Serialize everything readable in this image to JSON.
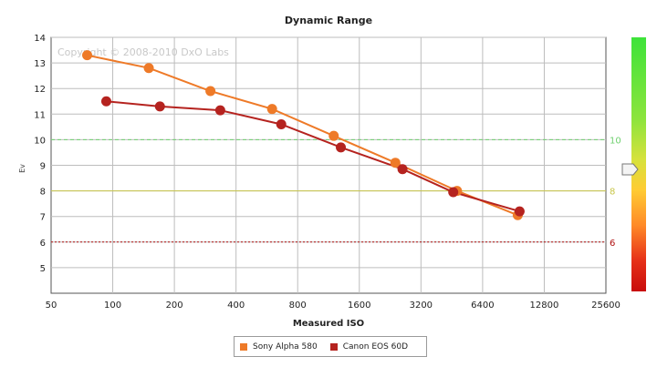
{
  "chart_data": {
    "type": "line",
    "title": "Dynamic Range",
    "xlabel": "Measured ISO",
    "ylabel": "Ev",
    "watermark": "Copyright © 2008-2010 DxO Labs",
    "x_scale": "log2",
    "xlim": [
      50,
      25600
    ],
    "ylim": [
      4,
      14
    ],
    "x_ticks": [
      "50",
      "100",
      "200",
      "400",
      "800",
      "1600",
      "3200",
      "6400",
      "12800",
      "25600"
    ],
    "y_ticks": [
      "5",
      "6",
      "7",
      "8",
      "9",
      "10",
      "11",
      "12",
      "13",
      "14"
    ],
    "grid": true,
    "legend_position": "bottom",
    "reference_lines": [
      {
        "label": "10",
        "y": 10,
        "color": "#6fd06f",
        "style": "dashed"
      },
      {
        "label": "8",
        "y": 8,
        "color": "#c8c64a",
        "style": "solid"
      },
      {
        "label": "6",
        "y": 6,
        "color": "#b01010",
        "style": "dotted"
      }
    ],
    "series": [
      {
        "name": "Sony Alpha 580",
        "color": "#ee7a28",
        "x": [
          75,
          150,
          300,
          600,
          1200,
          2400,
          4800,
          9500
        ],
        "y": [
          13.3,
          12.8,
          11.9,
          11.2,
          10.15,
          9.1,
          8.0,
          7.05
        ]
      },
      {
        "name": "Canon EOS 60D",
        "color": "#b5231f",
        "x": [
          93,
          170,
          335,
          665,
          1300,
          2600,
          4600,
          9700
        ],
        "y": [
          11.5,
          11.3,
          11.15,
          10.6,
          9.7,
          8.85,
          7.95,
          7.2
        ]
      }
    ]
  }
}
